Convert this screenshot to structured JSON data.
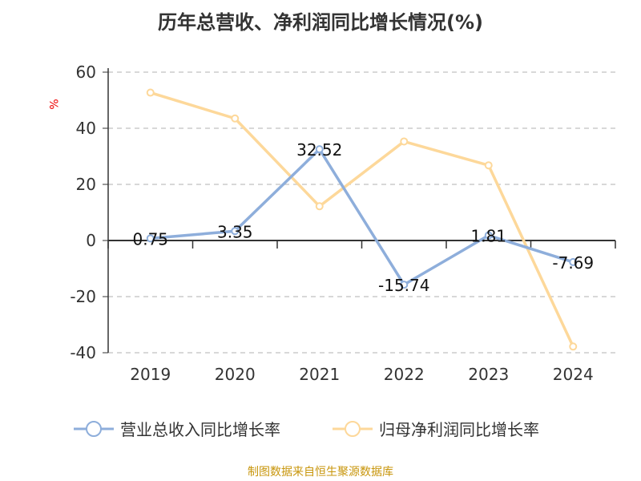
{
  "chart_data": {
    "type": "line",
    "title": "历年总营收、净利润同比增长情况(%)",
    "ylabel": "%",
    "categories": [
      "2019",
      "2020",
      "2021",
      "2022",
      "2023",
      "2024"
    ],
    "ylim": [
      -40,
      60
    ],
    "yticks": [
      60,
      40,
      20,
      0,
      -20,
      -40
    ],
    "grid": true,
    "legend_position": "bottom",
    "series": [
      {
        "name": "营业总收入同比增长率",
        "color": "#8eaedb",
        "values": [
          0.75,
          3.35,
          32.52,
          -15.74,
          1.81,
          -7.69
        ],
        "labels": [
          "0.75",
          "3.35",
          "32.52",
          "-15.74",
          "1.81",
          "-7.69"
        ]
      },
      {
        "name": "归母净利润同比增长率",
        "color": "#fdd89a",
        "values": [
          52.7,
          43.5,
          12.2,
          35.3,
          26.8,
          -37.8
        ]
      }
    ]
  },
  "source": "制图数据来自恒生聚源数据库"
}
